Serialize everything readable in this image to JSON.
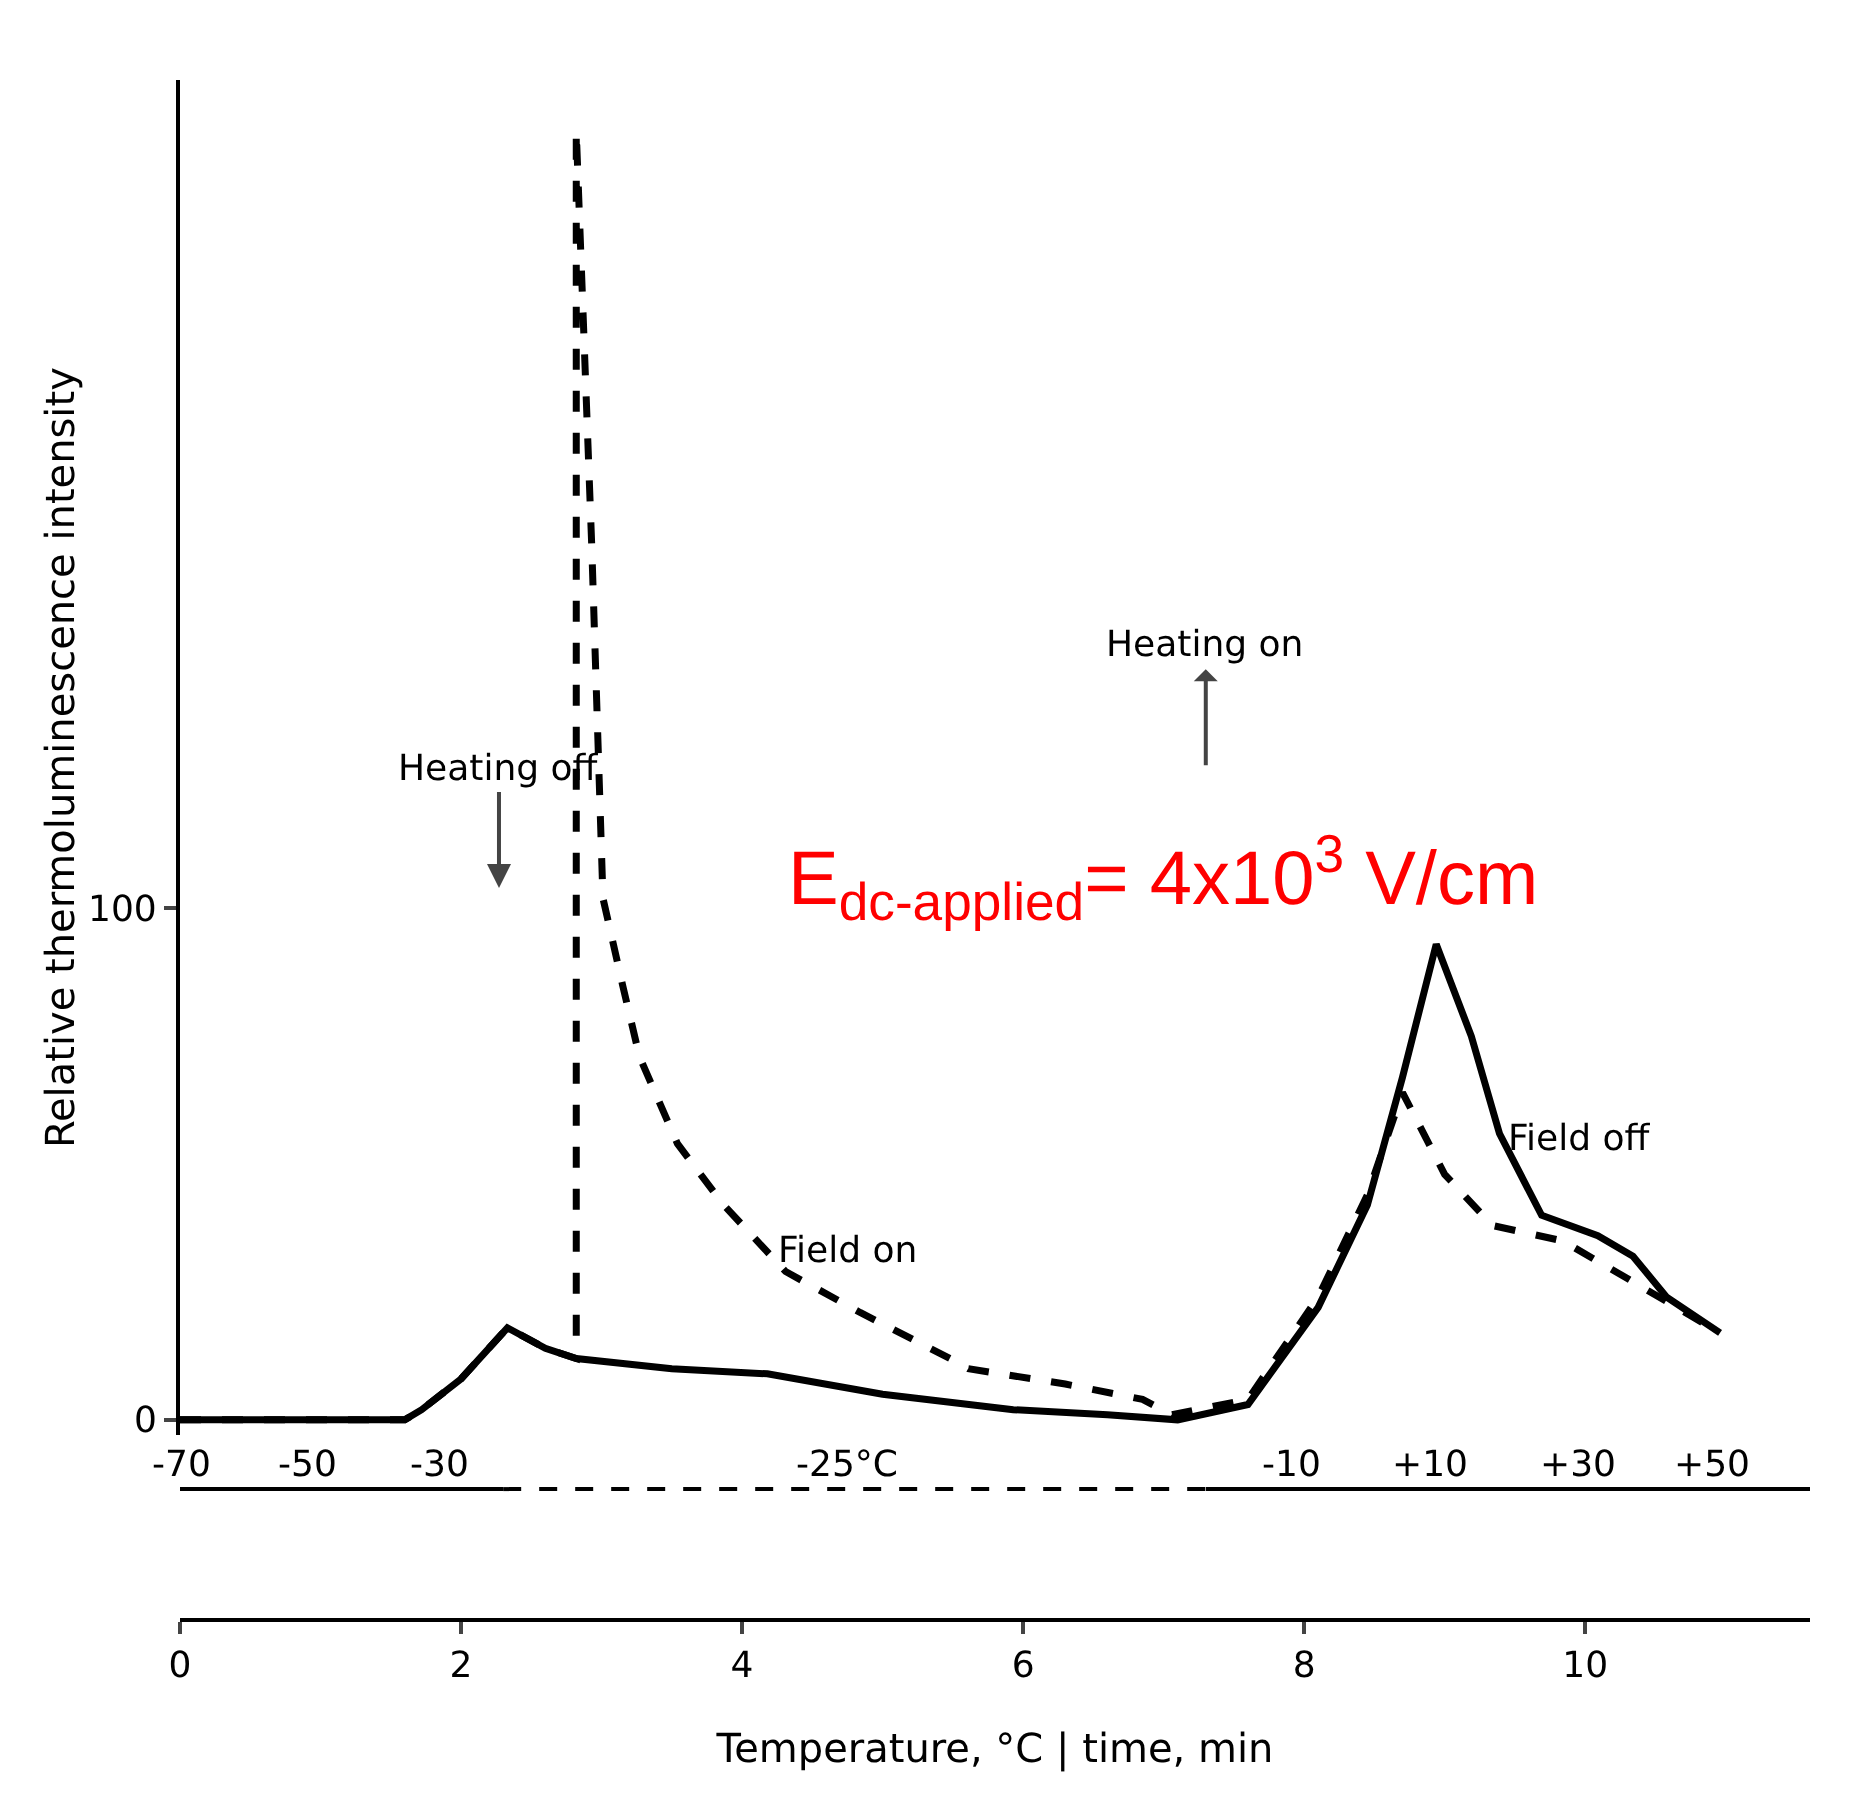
{
  "chart_data": {
    "type": "line",
    "xlabel": "Temperature, °C | time, min",
    "ylabel": "Relative thermoluminescence intensity",
    "xlim": [
      0,
      11.6
    ],
    "xticks": [
      0,
      2,
      4,
      6,
      8,
      10
    ],
    "ylim": [
      -3,
      262
    ],
    "yticks": [
      0,
      100
    ],
    "grid": false,
    "legend": false,
    "marker": "none",
    "series": [
      {
        "name": "Field on",
        "color": "#000000",
        "line_style": "dashed",
        "x": [
          0,
          0.8,
          1.6,
          1.72,
          2.0,
          2.33,
          2.6,
          2.82,
          2.82,
          2.93,
          3.01,
          3.15,
          3.27,
          3.54,
          3.87,
          4.31,
          4.84,
          5.48,
          5.61,
          6.3,
          6.85,
          7.06,
          7.6,
          8.1,
          8.45,
          8.7,
          9.0,
          9.34,
          9.84,
          10.34,
          10.96
        ],
        "values": [
          0,
          0,
          0,
          2,
          8,
          18,
          14,
          12,
          252,
          171,
          102,
          85,
          71,
          54,
          42,
          29,
          21,
          12,
          10,
          7,
          4,
          1,
          4,
          24,
          44,
          64,
          48,
          38,
          35,
          27,
          17
        ]
      },
      {
        "name": "Field off",
        "color": "#000000",
        "line_style": "solid",
        "x": [
          0,
          0.8,
          1.6,
          1.72,
          2.0,
          2.33,
          2.6,
          2.82,
          3.5,
          4.18,
          5.0,
          5.93,
          6.6,
          7.1,
          7.6,
          8.1,
          8.45,
          8.7,
          8.94,
          9.19,
          9.39,
          9.69,
          10.09,
          10.34,
          10.58,
          10.96
        ],
        "values": [
          0,
          0,
          0,
          2,
          8,
          18,
          14,
          12,
          10,
          9,
          5,
          2,
          1,
          0,
          3,
          22,
          42,
          67,
          93,
          75,
          56,
          40,
          36,
          32,
          24,
          17
        ]
      }
    ],
    "annotations": [
      "Heating off",
      "Heating on",
      "E$_{dc-applied}$= 4x10$^{3}$ V/cm",
      "-70",
      "-50",
      "-30",
      "-25°C",
      "-10",
      "+10",
      "+30",
      "+50"
    ]
  }
}
